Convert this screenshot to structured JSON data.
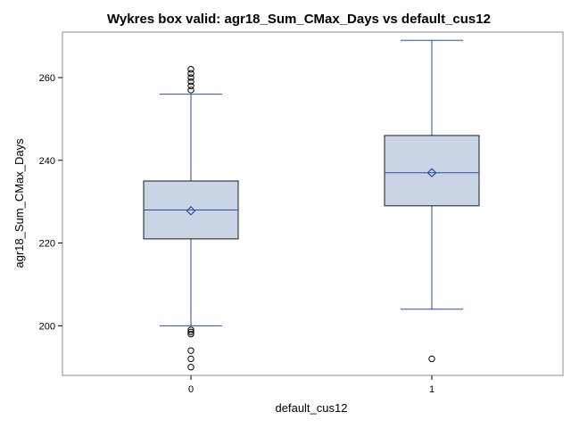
{
  "chart_data": {
    "type": "box",
    "title": "Wykres box valid: agr18_Sum_CMax_Days vs default_cus12",
    "xlabel": "default_cus12",
    "ylabel": "agr18_Sum_CMax_Days",
    "ylim": [
      188,
      271
    ],
    "yticks": [
      200,
      220,
      240,
      260
    ],
    "categories": [
      "0",
      "1"
    ],
    "grid": false,
    "legend": "none",
    "boxes": [
      {
        "category": "0",
        "whisker_low": 200,
        "q1": 221,
        "median": 228,
        "mean": 227.8,
        "q3": 235,
        "whisker_high": 256,
        "outliers": [
          190,
          192,
          194,
          198,
          198.5,
          199,
          257,
          258,
          259,
          260,
          261,
          262
        ]
      },
      {
        "category": "1",
        "whisker_low": 204,
        "q1": 229,
        "median": 237,
        "mean": 237,
        "q3": 246,
        "whisker_high": 269,
        "outliers": [
          192
        ]
      }
    ],
    "colors": {
      "box_fill": "#c9d5e5",
      "box_border": "#1a1a1a",
      "whisker": "#2a4fa0",
      "median": "#2a4fa0",
      "mean_marker": "#2a4fa0",
      "outlier": "#000000",
      "frame": "#8c8c8c"
    }
  }
}
